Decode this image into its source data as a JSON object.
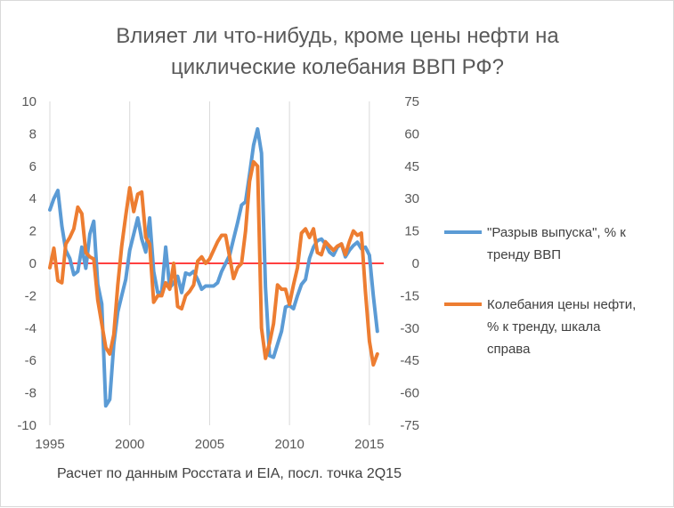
{
  "chart_data": {
    "type": "line",
    "title_lines": [
      "Влияет ли что-нибудь, кроме цены нефти на",
      "циклические колебания ВВП РФ?"
    ],
    "footnote": "Расчет по данным Росстата и EIA, посл. точка 2Q15",
    "x_axis": {
      "range": [
        1995,
        2015.9
      ],
      "ticks": [
        "1995",
        "2000",
        "2005",
        "2010",
        "2015"
      ],
      "tick_values": [
        1995,
        2000,
        2005,
        2010,
        2015
      ]
    },
    "y_left": {
      "range": [
        -10,
        10
      ],
      "ticks": [
        "10",
        "8",
        "6",
        "4",
        "2",
        "0",
        "-2",
        "-4",
        "-6",
        "-8",
        "-10"
      ],
      "tick_values": [
        10,
        8,
        6,
        4,
        2,
        0,
        -2,
        -4,
        -6,
        -8,
        -10
      ]
    },
    "y_right": {
      "range": [
        -75,
        75
      ],
      "ticks": [
        "75",
        "60",
        "45",
        "30",
        "15",
        "0",
        "-15",
        "-30",
        "-45",
        "-60",
        "-75"
      ],
      "tick_values": [
        75,
        60,
        45,
        30,
        15,
        0,
        -15,
        -30,
        -45,
        -60,
        -75
      ]
    },
    "grid": {
      "vertical": true,
      "horizontal": false
    },
    "zero_line_color": "#ff0000",
    "legend_position": "right",
    "series": [
      {
        "name": "\"Разрыв выпуска\", % к тренду ВВП",
        "legend_lines": [
          "\"Разрыв выпуска\", % к",
          "тренду ВВП"
        ],
        "axis": "left",
        "color": "#5b9bd5",
        "x": [
          1995.0,
          1995.25,
          1995.5,
          1995.75,
          1996.0,
          1996.25,
          1996.5,
          1996.75,
          1997.0,
          1997.25,
          1997.5,
          1997.75,
          1998.0,
          1998.25,
          1998.5,
          1998.75,
          1999.0,
          1999.25,
          1999.5,
          1999.75,
          2000.0,
          2000.25,
          2000.5,
          2000.75,
          2001.0,
          2001.25,
          2001.5,
          2001.75,
          2002.0,
          2002.25,
          2002.5,
          2002.75,
          2003.0,
          2003.25,
          2003.5,
          2003.75,
          2004.0,
          2004.25,
          2004.5,
          2004.75,
          2005.0,
          2005.25,
          2005.5,
          2005.75,
          2006.0,
          2006.25,
          2006.5,
          2006.75,
          2007.0,
          2007.25,
          2007.5,
          2007.75,
          2008.0,
          2008.25,
          2008.5,
          2008.75,
          2009.0,
          2009.25,
          2009.5,
          2009.75,
          2010.0,
          2010.25,
          2010.5,
          2010.75,
          2011.0,
          2011.25,
          2011.5,
          2011.75,
          2012.0,
          2012.25,
          2012.5,
          2012.75,
          2013.0,
          2013.25,
          2013.5,
          2013.75,
          2014.0,
          2014.25,
          2014.5,
          2014.75,
          2015.0,
          2015.25,
          2015.5
        ],
        "y": [
          3.3,
          4.0,
          4.5,
          2.3,
          0.8,
          0.3,
          -0.7,
          -0.5,
          1.0,
          -0.3,
          1.8,
          2.6,
          -1.3,
          -2.5,
          -8.8,
          -8.4,
          -5.0,
          -3.0,
          -2.0,
          -1.0,
          0.8,
          1.8,
          2.8,
          1.5,
          0.7,
          2.8,
          -0.5,
          -1.8,
          -1.8,
          1.0,
          -1.5,
          -1.2,
          -0.8,
          -1.8,
          -0.6,
          -0.7,
          -0.5,
          -1.0,
          -1.6,
          -1.4,
          -1.4,
          -1.4,
          -1.2,
          -0.5,
          0.0,
          0.5,
          1.5,
          2.5,
          3.6,
          3.8,
          5.5,
          7.3,
          8.3,
          6.8,
          -1.5,
          -5.7,
          -5.8,
          -5.0,
          -4.2,
          -2.7,
          -2.6,
          -2.8,
          -2.0,
          -1.3,
          -1.0,
          0.3,
          1.0,
          1.4,
          1.5,
          1.2,
          0.7,
          0.5,
          1.0,
          1.2,
          0.4,
          0.8,
          1.1,
          1.3,
          0.9,
          1.0,
          0.5,
          -2.0,
          -4.2
        ]
      },
      {
        "name": "Колебания цены нефти, % к тренду, шкала справа",
        "legend_lines": [
          "Колебания цены нефти,",
          "% к тренду, шкала",
          "справа"
        ],
        "axis": "right",
        "color": "#ed7d31",
        "x": [
          1995.0,
          1995.25,
          1995.5,
          1995.75,
          1996.0,
          1996.25,
          1996.5,
          1996.75,
          1997.0,
          1997.25,
          1997.5,
          1997.75,
          1998.0,
          1998.25,
          1998.5,
          1998.75,
          1999.0,
          1999.25,
          1999.5,
          1999.75,
          2000.0,
          2000.25,
          2000.5,
          2000.75,
          2001.0,
          2001.25,
          2001.5,
          2001.75,
          2002.0,
          2002.25,
          2002.5,
          2002.75,
          2003.0,
          2003.25,
          2003.5,
          2003.75,
          2004.0,
          2004.25,
          2004.5,
          2004.75,
          2005.0,
          2005.25,
          2005.5,
          2005.75,
          2006.0,
          2006.25,
          2006.5,
          2006.75,
          2007.0,
          2007.25,
          2007.5,
          2007.75,
          2008.0,
          2008.25,
          2008.5,
          2008.75,
          2009.0,
          2009.25,
          2009.5,
          2009.75,
          2010.0,
          2010.25,
          2010.5,
          2010.75,
          2011.0,
          2011.25,
          2011.5,
          2011.75,
          2012.0,
          2012.25,
          2012.5,
          2012.75,
          2013.0,
          2013.25,
          2013.5,
          2013.75,
          2014.0,
          2014.25,
          2014.5,
          2014.75,
          2015.0,
          2015.25,
          2015.5
        ],
        "y": [
          -2,
          7,
          -8,
          -9,
          9,
          12,
          16,
          26,
          23,
          5,
          3,
          2,
          -17,
          -28,
          -39,
          -42,
          -33,
          -10,
          8,
          22,
          35,
          24,
          32,
          33,
          12,
          9,
          -18,
          -15,
          -15,
          -9,
          -12,
          0,
          -20,
          -21,
          -15,
          -13,
          -10,
          1,
          3,
          0,
          2,
          6,
          10,
          13,
          13,
          3,
          -7,
          -2,
          0,
          15,
          38,
          47,
          45,
          -30,
          -44,
          -37,
          -28,
          -10,
          -12,
          -12,
          -19,
          -10,
          -2,
          14,
          16,
          12,
          16,
          5,
          4,
          10,
          8,
          6,
          8,
          9,
          4,
          10,
          15,
          13,
          14,
          -13,
          -36,
          -47,
          -42
        ]
      }
    ]
  }
}
